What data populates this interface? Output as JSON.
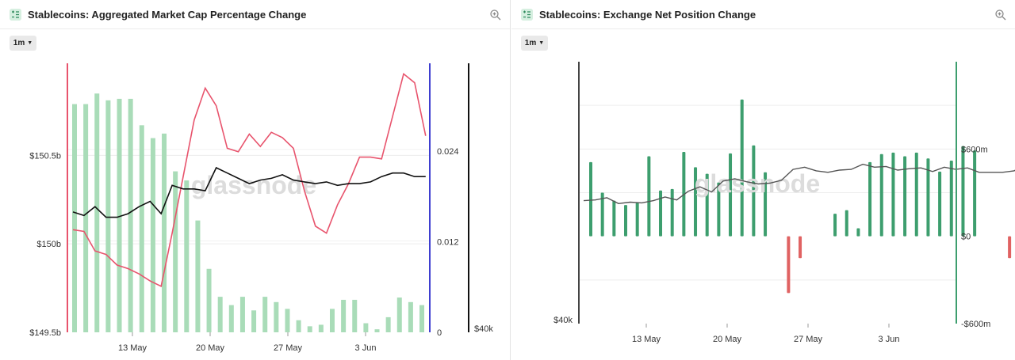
{
  "watermark": "glassnode",
  "colors": {
    "bar_light_green": "#a9dcb8",
    "bar_green": "#3d9e6e",
    "bar_red": "#e06262",
    "line_red": "#e8546d",
    "line_black": "#111111",
    "line_gray": "#555555",
    "axis_red": "#e8546d",
    "axis_blue": "#3f3fd0",
    "axis_black": "#111111",
    "axis_dark": "#444444",
    "axis_green": "#3d9e6e"
  },
  "left_panel": {
    "title": "Stablecoins: Aggregated Market Cap Percentage Change",
    "range_label": "1m",
    "zoom_icon": "magnifier-plus-icon",
    "chart_icon": "chart-settings-icon"
  },
  "right_panel": {
    "title": "Stablecoins: Exchange Net Position Change",
    "range_label": "1m",
    "zoom_icon": "magnifier-plus-icon",
    "chart_icon": "chart-settings-icon"
  },
  "chart_data": [
    {
      "type": "bar",
      "title": "Stablecoins: Aggregated Market Cap Percentage Change",
      "x_ticks": [
        "13 May",
        "20 May",
        "27 May",
        "3 Jun"
      ],
      "axes": {
        "left": {
          "ticks": [
            "$149.5b",
            "$150b",
            "$150.5b"
          ],
          "range": [
            149.5,
            151.02
          ]
        },
        "right_inner": {
          "ticks": [
            "0",
            "0.012",
            "0.024"
          ],
          "range": [
            0,
            0.0356
          ]
        },
        "right_outer": {
          "ticks": [
            "$40k"
          ]
        }
      },
      "series": [
        {
          "kind": "bar",
          "axis": "right_inner",
          "values": [
            0.0302,
            0.0302,
            0.0316,
            0.0307,
            0.0309,
            0.0309,
            0.0274,
            0.0257,
            0.0263,
            0.0213,
            0.0201,
            0.0148,
            0.0084,
            0.0047,
            0.0036,
            0.0047,
            0.0029,
            0.0047,
            0.004,
            0.0031,
            0.0016,
            0.0008,
            0.001,
            0.0031,
            0.0043,
            0.0043,
            0.0012,
            0.0004,
            0.002,
            0.0046,
            0.004,
            0.0036
          ]
        },
        {
          "kind": "line",
          "axis": "left",
          "values": [
            150.08,
            150.07,
            149.96,
            149.94,
            149.88,
            149.86,
            149.83,
            149.79,
            149.76,
            150.06,
            150.38,
            150.7,
            150.88,
            150.78,
            150.54,
            150.52,
            150.62,
            150.55,
            150.63,
            150.6,
            150.54,
            150.3,
            150.1,
            150.06,
            150.22,
            150.34,
            150.49,
            150.49,
            150.48,
            150.72,
            150.96,
            150.91,
            150.61
          ]
        },
        {
          "kind": "line",
          "axis": "left",
          "values": [
            150.18,
            150.16,
            150.21,
            150.15,
            150.15,
            150.17,
            150.21,
            150.24,
            150.17,
            150.33,
            150.31,
            150.31,
            150.3,
            150.43,
            150.4,
            150.37,
            150.34,
            150.36,
            150.37,
            150.39,
            150.36,
            150.35,
            150.34,
            150.35,
            150.33,
            150.34,
            150.34,
            150.35,
            150.38,
            150.4,
            150.4,
            150.38,
            150.38
          ]
        }
      ]
    },
    {
      "type": "bar",
      "title": "Stablecoins: Exchange Net Position Change",
      "x_ticks": [
        "13 May",
        "20 May",
        "27 May",
        "3 Jun"
      ],
      "axes": {
        "left": {
          "ticks": [
            "$40k"
          ]
        },
        "right": {
          "ticks": [
            "-$600m",
            "$0",
            "$600m"
          ],
          "range": [
            -600,
            1200
          ]
        }
      },
      "series": [
        {
          "kind": "bar",
          "axis": "right",
          "values": [
            510,
            300,
            245,
            215,
            230,
            550,
            315,
            325,
            580,
            475,
            430,
            370,
            570,
            940,
            625,
            440,
            0,
            -390,
            -150,
            0,
            0,
            155,
            180,
            55,
            510,
            565,
            575,
            550,
            575,
            535,
            445,
            520,
            620,
            590,
            0,
            0,
            -150,
            0,
            250,
            400,
            520,
            640,
            520,
            570
          ],
          "negative_color": "#e06262"
        },
        {
          "kind": "line",
          "axis": "right",
          "values": [
            245,
            250,
            265,
            225,
            235,
            230,
            245,
            270,
            250,
            310,
            340,
            305,
            380,
            395,
            375,
            360,
            365,
            385,
            460,
            475,
            450,
            440,
            455,
            460,
            495,
            475,
            480,
            455,
            465,
            470,
            445,
            475,
            460,
            470,
            440,
            440,
            440,
            450,
            490,
            530,
            520,
            505,
            485,
            485
          ]
        }
      ]
    }
  ]
}
